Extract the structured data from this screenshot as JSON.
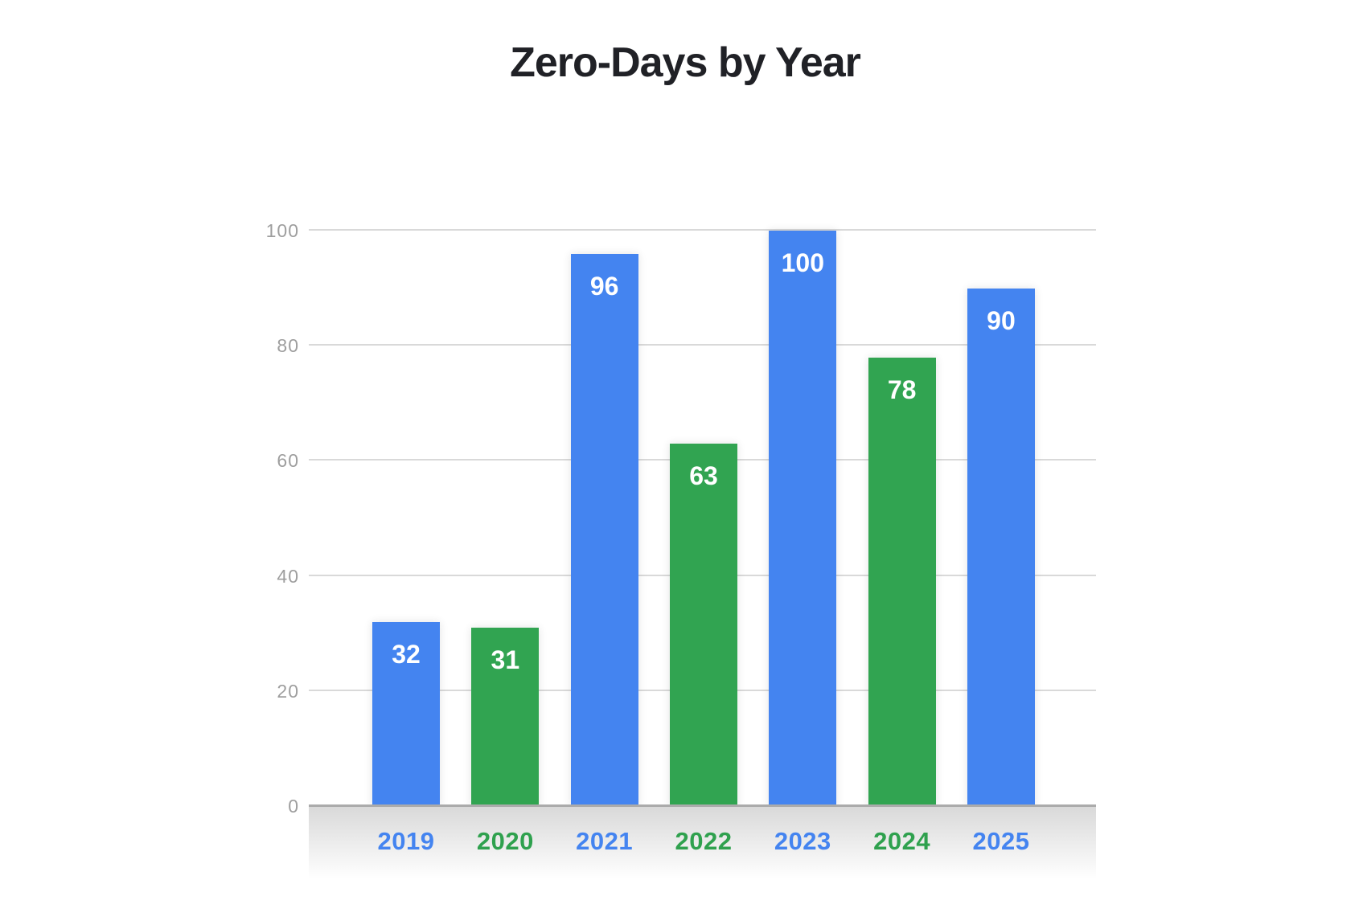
{
  "chart_data": {
    "type": "bar",
    "title": "Zero-Days by Year",
    "categories": [
      "2019",
      "2020",
      "2021",
      "2022",
      "2023",
      "2024",
      "2025"
    ],
    "values": [
      32,
      31,
      96,
      63,
      100,
      78,
      90
    ],
    "value_labels": [
      "32",
      "31",
      "96",
      "63",
      "100",
      "78",
      "90"
    ],
    "bar_colors": [
      "#4484F0",
      "#31A451",
      "#4484F0",
      "#31A451",
      "#4484F0",
      "#31A451",
      "#4484F0"
    ],
    "category_label_colors": [
      "#4484F0",
      "#2FA14E",
      "#4484F0",
      "#2FA14E",
      "#4484F0",
      "#2FA14E",
      "#4484F0"
    ],
    "y_ticks": [
      0,
      20,
      40,
      60,
      80,
      100
    ],
    "ylim": [
      0,
      100
    ],
    "xlabel": "",
    "ylabel": "",
    "grid": "horizontal",
    "legend": "none",
    "styles": {
      "title_color": "#202126",
      "tick_label_color": "#9e9e9e",
      "gridline_color": "#d9d9d9",
      "baseline_color": "#ababab",
      "value_label_color": "#ffffff",
      "background": "#ffffff"
    }
  }
}
